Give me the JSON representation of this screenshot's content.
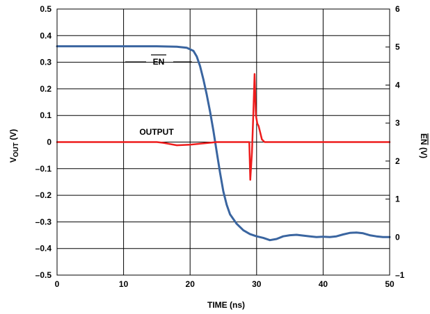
{
  "chart_data": {
    "type": "line",
    "xlabel": "TIME (ns)",
    "ylabel_left_main": "V",
    "ylabel_left_sub": "OUT",
    "ylabel_left_unit": " (V)",
    "ylabel_right": "EN (V)",
    "ylabel_right_overlined": "EN",
    "ylabel_right_unit": " (V)",
    "xlim": [
      0,
      50
    ],
    "ylim_left": [
      -0.5,
      0.5
    ],
    "ylim_right": [
      -1,
      6
    ],
    "grid": true,
    "x_ticks": [
      "0",
      "10",
      "20",
      "30",
      "40",
      "50"
    ],
    "y_left_ticks": [
      "0.5",
      "0.4",
      "0.3",
      "0.2",
      "0.1",
      "0",
      "–0.1",
      "–0.2",
      "–0.3",
      "–0.4",
      "–0.5"
    ],
    "y_right_ticks": [
      "6",
      "5",
      "4",
      "3",
      "2",
      "1",
      "0",
      "–1"
    ],
    "annotations": [
      {
        "text": "EN",
        "overline": true,
        "series": "EN"
      },
      {
        "text": "OUTPUT",
        "overline": false,
        "series": "OUTPUT"
      }
    ],
    "series": [
      {
        "name": "EN",
        "axis": "right",
        "color": "#3a65a0",
        "x": [
          0,
          5,
          10,
          15,
          18,
          19.5,
          20.5,
          21,
          21.5,
          22,
          22.5,
          23,
          23.5,
          24,
          24.5,
          25,
          25.5,
          26,
          27,
          28,
          29,
          30,
          31,
          32,
          33,
          34,
          35,
          36,
          37,
          38,
          39,
          40,
          41,
          42,
          43,
          44,
          45,
          46,
          47,
          48,
          49,
          50
        ],
        "y": [
          5.02,
          5.02,
          5.02,
          5.02,
          5.01,
          4.98,
          4.9,
          4.75,
          4.5,
          4.15,
          3.75,
          3.3,
          2.8,
          2.25,
          1.7,
          1.2,
          0.85,
          0.6,
          0.35,
          0.18,
          0.08,
          0.02,
          -0.02,
          -0.08,
          -0.05,
          0.02,
          0.05,
          0.06,
          0.04,
          0.02,
          0.0,
          0.01,
          0.0,
          0.02,
          0.07,
          0.11,
          0.12,
          0.1,
          0.05,
          0.02,
          0.0,
          0.0
        ]
      },
      {
        "name": "OUTPUT",
        "axis": "left",
        "color": "#ee1c1c",
        "x": [
          0,
          5,
          10,
          15,
          16,
          18,
          20,
          22,
          24,
          26,
          28,
          28.9,
          29.05,
          29.3,
          29.5,
          29.7,
          29.9,
          30.1,
          30.3,
          30.5,
          30.8,
          31.2,
          32,
          35,
          40,
          45,
          50
        ],
        "y": [
          0.0,
          0.0,
          0.0,
          0.0,
          -0.003,
          -0.012,
          -0.01,
          -0.005,
          0.0,
          0.0,
          0.0,
          0.0,
          -0.142,
          -0.04,
          0.1,
          0.256,
          0.1,
          0.07,
          0.06,
          0.04,
          0.01,
          0.0,
          0.0,
          0.0,
          0.0,
          0.0,
          0.0
        ]
      }
    ]
  }
}
